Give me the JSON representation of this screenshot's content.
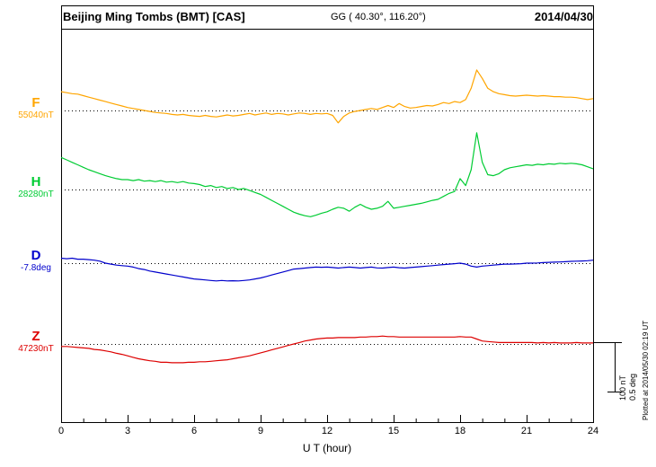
{
  "header": {
    "title": "Beijing Ming Tombs (BMT)  [CAS]",
    "coordinates": "GG ( 40.30°, 116.20°)",
    "date": "2014/04/30"
  },
  "axis": {
    "xlabel": "U T (hour)",
    "ticks": [
      "0",
      "3",
      "6",
      "9",
      "12",
      "15",
      "18",
      "21",
      "24"
    ]
  },
  "scalebar": {
    "nt_label": "100 nT",
    "deg_label": "0.5 deg"
  },
  "footer_note": "Plotted at 2014/05/30 02:19 UT",
  "chart_data": {
    "type": "line",
    "title": "Beijing Ming Tombs (BMT) [CAS] magnetogram 2014/04/30",
    "xlabel": "U T (hour)",
    "x_range": [
      0,
      24
    ],
    "x_start": 0,
    "x_step_hours": 0.25,
    "x_ticks": [
      0,
      3,
      6,
      9,
      12,
      15,
      18,
      21,
      24
    ],
    "grid": "dotted horizontal reference line per channel",
    "scale": {
      "nT_per_bar": 100,
      "deg_per_bar": 0.5
    },
    "series": [
      {
        "name": "F",
        "unit": "nT",
        "color": "#FFA500",
        "baseline_label": "55040nT",
        "baseline_value": 55040,
        "offsets": [
          38,
          36,
          34,
          33,
          30,
          27,
          24,
          21,
          18,
          15,
          12,
          9,
          6,
          4,
          2,
          0,
          -2,
          -4,
          -5,
          -6,
          -8,
          -9,
          -8,
          -10,
          -11,
          -12,
          -10,
          -12,
          -13,
          -11,
          -9,
          -11,
          -10,
          -8,
          -6,
          -9,
          -7,
          -5,
          -8,
          -6,
          -7,
          -9,
          -7,
          -5,
          -6,
          -8,
          -6,
          -7,
          -6,
          -10,
          -25,
          -12,
          -5,
          -2,
          0,
          2,
          4,
          2,
          6,
          10,
          6,
          14,
          8,
          5,
          6,
          8,
          10,
          9,
          12,
          16,
          14,
          18,
          16,
          22,
          45,
          82,
          65,
          45,
          38,
          34,
          32,
          30,
          29,
          30,
          31,
          30,
          29,
          30,
          29,
          28,
          28,
          27,
          27,
          26,
          24,
          22,
          24
        ]
      },
      {
        "name": "H",
        "unit": "nT",
        "color": "#00CC33",
        "baseline_label": "28280nT",
        "baseline_value": 28280,
        "offsets": [
          65,
          60,
          55,
          50,
          45,
          40,
          36,
          32,
          28,
          25,
          22,
          20,
          20,
          18,
          20,
          17,
          18,
          16,
          18,
          15,
          16,
          14,
          16,
          13,
          12,
          10,
          6,
          8,
          4,
          6,
          2,
          4,
          0,
          2,
          -2,
          -6,
          -10,
          -16,
          -22,
          -28,
          -34,
          -40,
          -46,
          -50,
          -53,
          -55,
          -52,
          -48,
          -45,
          -40,
          -36,
          -38,
          -44,
          -36,
          -30,
          -36,
          -40,
          -38,
          -34,
          -24,
          -38,
          -36,
          -34,
          -32,
          -30,
          -28,
          -25,
          -22,
          -20,
          -14,
          -8,
          -4,
          22,
          8,
          40,
          115,
          55,
          30,
          28,
          32,
          40,
          44,
          46,
          48,
          50,
          49,
          51,
          50,
          52,
          51,
          53,
          52,
          53,
          52,
          50,
          46,
          42
        ]
      },
      {
        "name": "D",
        "unit": "deg",
        "color": "#0000CC",
        "baseline_label": "-7.8deg",
        "baseline_value": -7.8,
        "offsets": [
          0.05,
          0.045,
          0.05,
          0.04,
          0.04,
          0.035,
          0.03,
          0.02,
          0.0,
          -0.01,
          -0.02,
          -0.025,
          -0.03,
          -0.04,
          -0.055,
          -0.065,
          -0.08,
          -0.09,
          -0.1,
          -0.11,
          -0.12,
          -0.13,
          -0.14,
          -0.15,
          -0.16,
          -0.165,
          -0.17,
          -0.175,
          -0.18,
          -0.175,
          -0.18,
          -0.178,
          -0.18,
          -0.175,
          -0.17,
          -0.16,
          -0.15,
          -0.135,
          -0.12,
          -0.105,
          -0.09,
          -0.075,
          -0.06,
          -0.055,
          -0.05,
          -0.045,
          -0.04,
          -0.042,
          -0.04,
          -0.045,
          -0.05,
          -0.045,
          -0.04,
          -0.045,
          -0.05,
          -0.045,
          -0.04,
          -0.048,
          -0.05,
          -0.045,
          -0.04,
          -0.046,
          -0.05,
          -0.045,
          -0.04,
          -0.035,
          -0.03,
          -0.025,
          -0.02,
          -0.015,
          -0.01,
          -0.005,
          0.0,
          -0.01,
          -0.03,
          -0.04,
          -0.03,
          -0.025,
          -0.02,
          -0.015,
          -0.01,
          -0.01,
          -0.008,
          -0.005,
          0.0,
          0.0,
          0.002,
          0.005,
          0.008,
          0.01,
          0.012,
          0.015,
          0.018,
          0.02,
          0.022,
          0.025,
          0.03
        ]
      },
      {
        "name": "Z",
        "unit": "nT",
        "color": "#DD0000",
        "baseline_label": "47230nT",
        "baseline_value": 47230,
        "offsets": [
          -5,
          -5,
          -6,
          -7,
          -8,
          -9,
          -11,
          -12,
          -14,
          -16,
          -19,
          -21,
          -24,
          -27,
          -30,
          -32,
          -34,
          -35,
          -37,
          -37,
          -38,
          -38,
          -38,
          -37,
          -37,
          -36,
          -36,
          -35,
          -34,
          -33,
          -32,
          -30,
          -28,
          -26,
          -24,
          -21,
          -18,
          -15,
          -12,
          -9,
          -6,
          -3,
          0,
          3,
          6,
          8,
          10,
          11,
          12,
          12,
          13,
          13,
          13,
          13,
          14,
          14,
          15,
          15,
          16,
          15,
          15,
          14,
          14,
          14,
          14,
          14,
          14,
          14,
          14,
          14,
          14,
          14,
          15,
          14,
          14,
          10,
          6,
          5,
          4,
          3,
          3,
          3,
          3,
          3,
          3,
          3,
          2,
          3,
          2,
          3,
          2,
          2,
          2,
          3,
          2,
          2,
          2
        ]
      }
    ]
  }
}
